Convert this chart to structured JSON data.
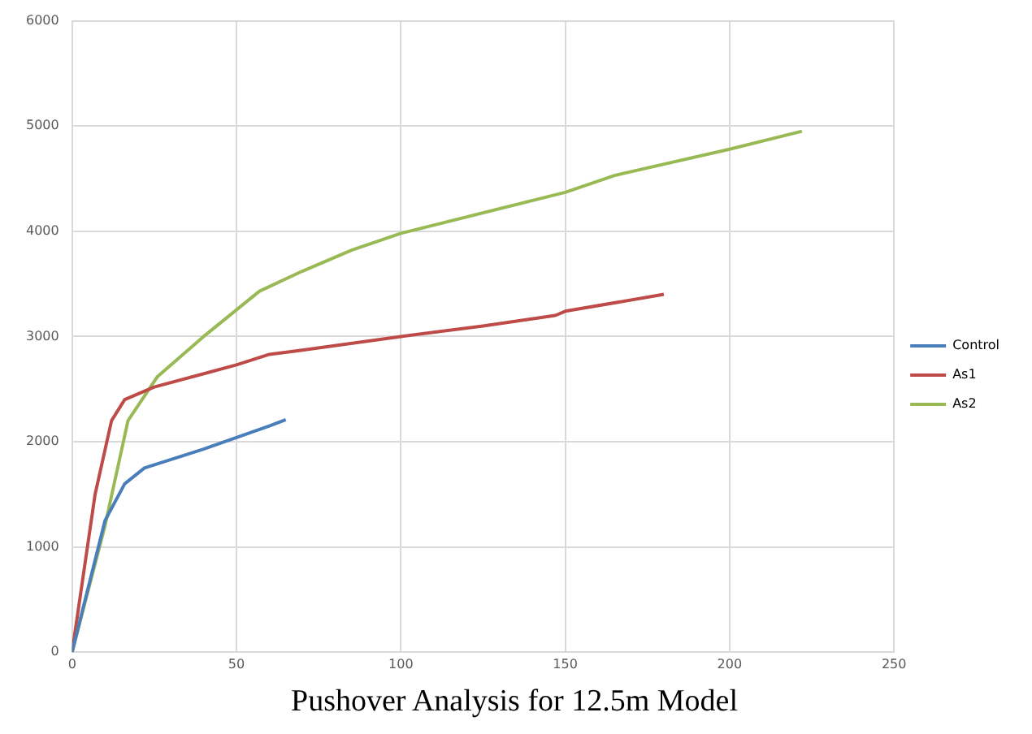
{
  "chart_data": {
    "type": "line",
    "title": "Pushover Analysis for 12.5m Model",
    "xlim": [
      0,
      250
    ],
    "xticks": [
      0,
      50,
      100,
      150,
      200,
      250
    ],
    "ylim": [
      0,
      6000
    ],
    "yticks": [
      0,
      1000,
      2000,
      3000,
      4000,
      5000,
      6000
    ],
    "grid": true,
    "legend": "right",
    "marker": "none",
    "series": [
      {
        "name": "Control",
        "color": "#4a7ebb",
        "x": [
          0,
          10,
          16,
          22,
          40,
          60,
          65
        ],
        "values": [
          0,
          1250,
          1600,
          1750,
          1930,
          2150,
          2210
        ]
      },
      {
        "name": "As1",
        "color": "#be4b48",
        "x": [
          0,
          7,
          12,
          16,
          25,
          50,
          60,
          70,
          100,
          125,
          147,
          150,
          180
        ],
        "values": [
          0,
          1500,
          2200,
          2400,
          2520,
          2730,
          2830,
          2870,
          3000,
          3100,
          3200,
          3240,
          3400
        ]
      },
      {
        "name": "As2",
        "color": "#98b954",
        "x": [
          0,
          10,
          17,
          26,
          40,
          57,
          70,
          85,
          100,
          150,
          165,
          200,
          222
        ],
        "values": [
          0,
          1200,
          2200,
          2620,
          3000,
          3430,
          3620,
          3820,
          3980,
          4370,
          4530,
          4780,
          4950
        ]
      }
    ]
  }
}
